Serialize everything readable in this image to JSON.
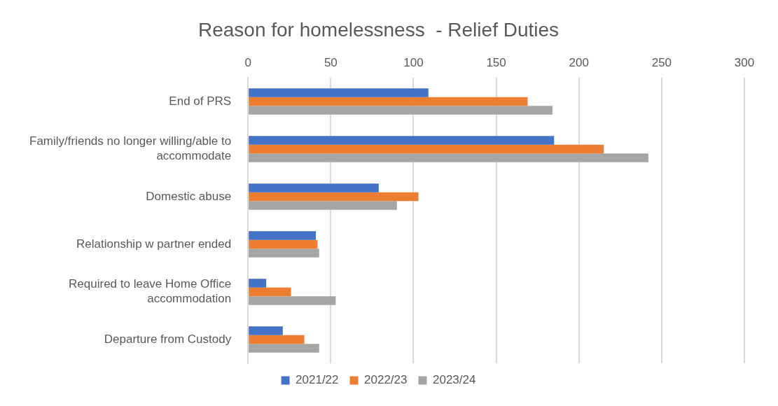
{
  "chart_data": {
    "type": "bar",
    "orientation": "horizontal",
    "title": "Reason for homelessness  - Relief Duties",
    "categories": [
      "End of PRS",
      "Family/friends no longer willing/able to accommodate",
      "Domestic abuse",
      "Relationship w partner ended",
      "Required to leave Home Office accommodation",
      "Departure from Custody"
    ],
    "series": [
      {
        "name": "2021/22",
        "color": "#4472c4",
        "values": [
          109,
          185,
          79,
          41,
          11,
          21
        ]
      },
      {
        "name": "2022/23",
        "color": "#ed7d31",
        "values": [
          169,
          215,
          103,
          42,
          26,
          34
        ]
      },
      {
        "name": "2023/24",
        "color": "#a5a5a5",
        "values": [
          184,
          242,
          90,
          43,
          53,
          43
        ]
      }
    ],
    "xlim": [
      0,
      300
    ],
    "xticks": [
      0,
      50,
      100,
      150,
      200,
      250,
      300
    ],
    "grid": "x",
    "legend": "bottom"
  }
}
